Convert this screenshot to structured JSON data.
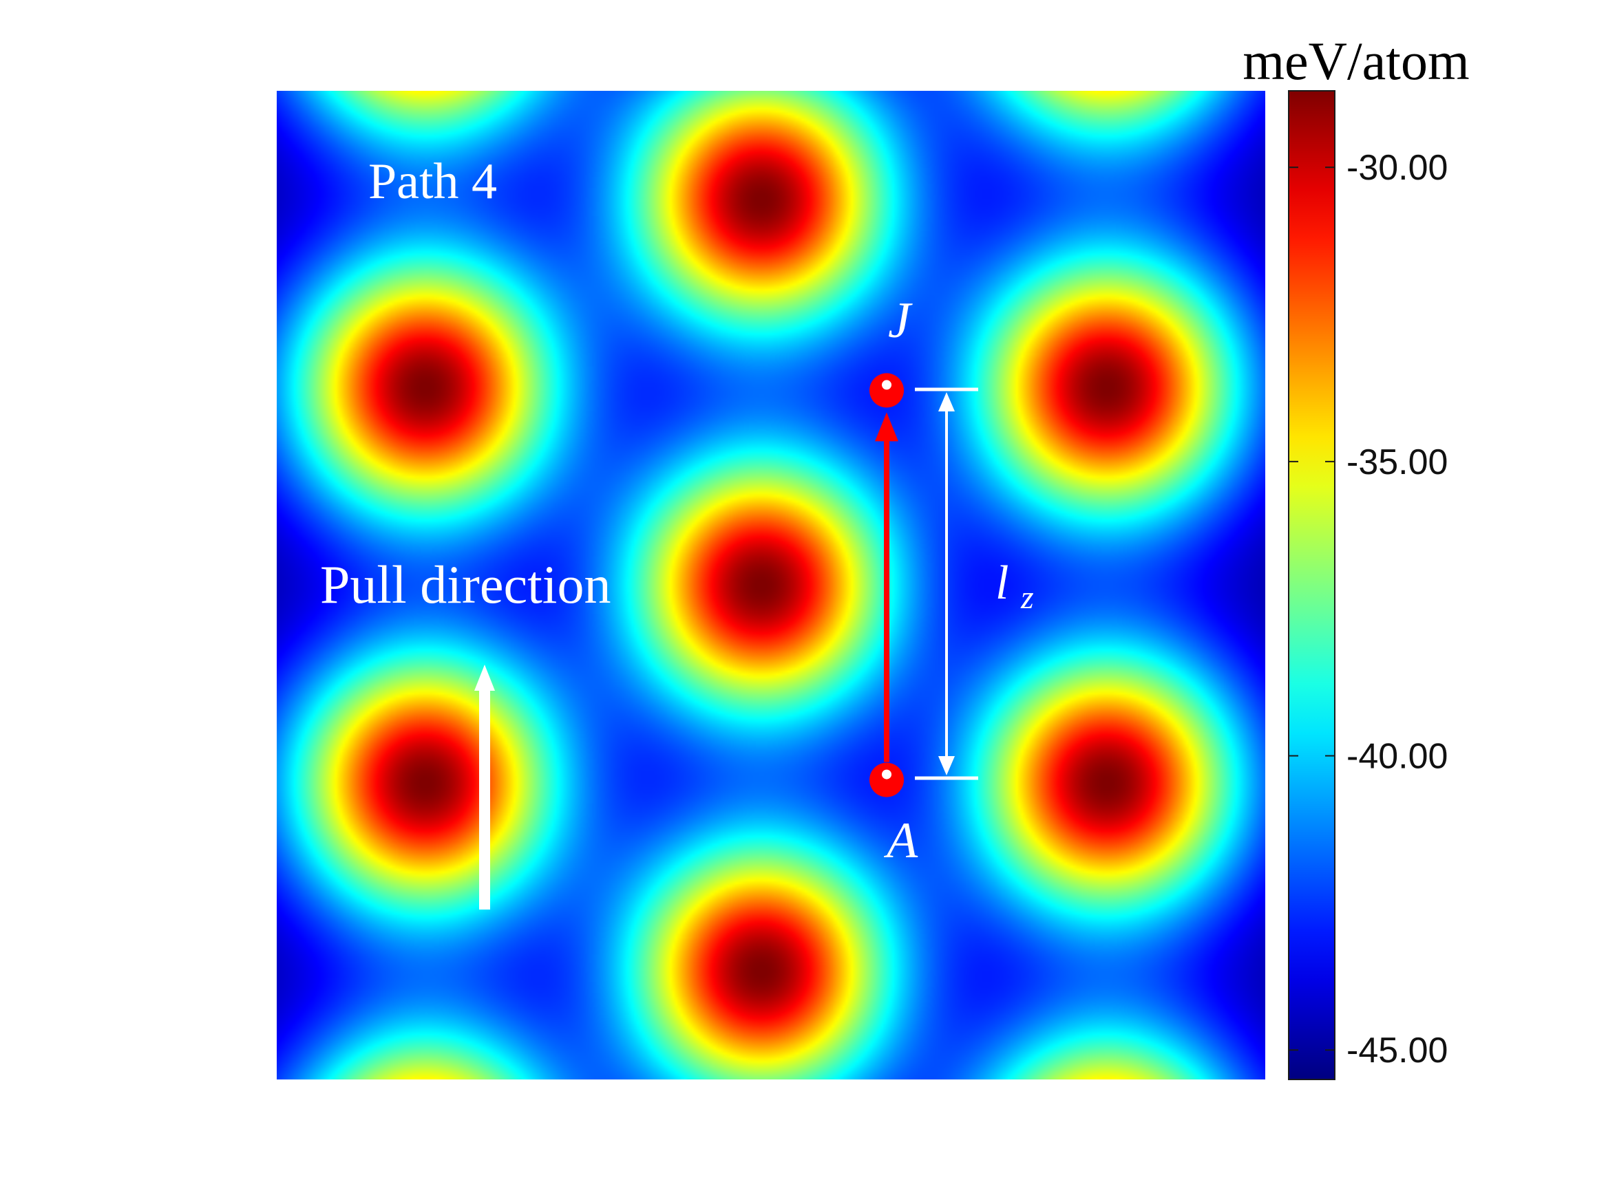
{
  "chart_data": {
    "type": "heatmap",
    "title": "",
    "annotations": {
      "path_label": "Path 4",
      "pull_label": "Pull direction",
      "start_point": "A",
      "end_point": "J",
      "distance_label_base": "l",
      "distance_label_sub": "z"
    },
    "colorbar": {
      "label": "meV/atom",
      "ticks": [
        -30.0,
        -35.0,
        -40.0,
        -45.0
      ],
      "tick_labels": [
        "-30.00",
        "-35.00",
        "-40.00",
        "-45.00"
      ],
      "range": [
        -45.5,
        -28.7
      ],
      "colormap": "jet"
    },
    "map_extent": {
      "x": [
        0,
        1
      ],
      "y": [
        0,
        1
      ]
    },
    "energy_maxima": [
      {
        "x": 0.15,
        "y": 0.7
      },
      {
        "x": 0.49,
        "y": 0.89
      },
      {
        "x": 0.49,
        "y": 0.5
      },
      {
        "x": 0.15,
        "y": 0.3
      },
      {
        "x": 0.84,
        "y": 0.7
      },
      {
        "x": 0.84,
        "y": 0.3
      },
      {
        "x": 0.49,
        "y": 0.11
      },
      {
        "x": 0.15,
        "y": 1.09
      },
      {
        "x": 0.84,
        "y": 1.09
      },
      {
        "x": 0.15,
        "y": -0.09
      },
      {
        "x": 0.84,
        "y": -0.09
      }
    ],
    "path": {
      "start": {
        "x": 0.617,
        "y": 0.303
      },
      "end": {
        "x": 0.617,
        "y": 0.697
      }
    },
    "colors": {
      "path": "#ff0000",
      "annotation": "#ffffff"
    }
  }
}
